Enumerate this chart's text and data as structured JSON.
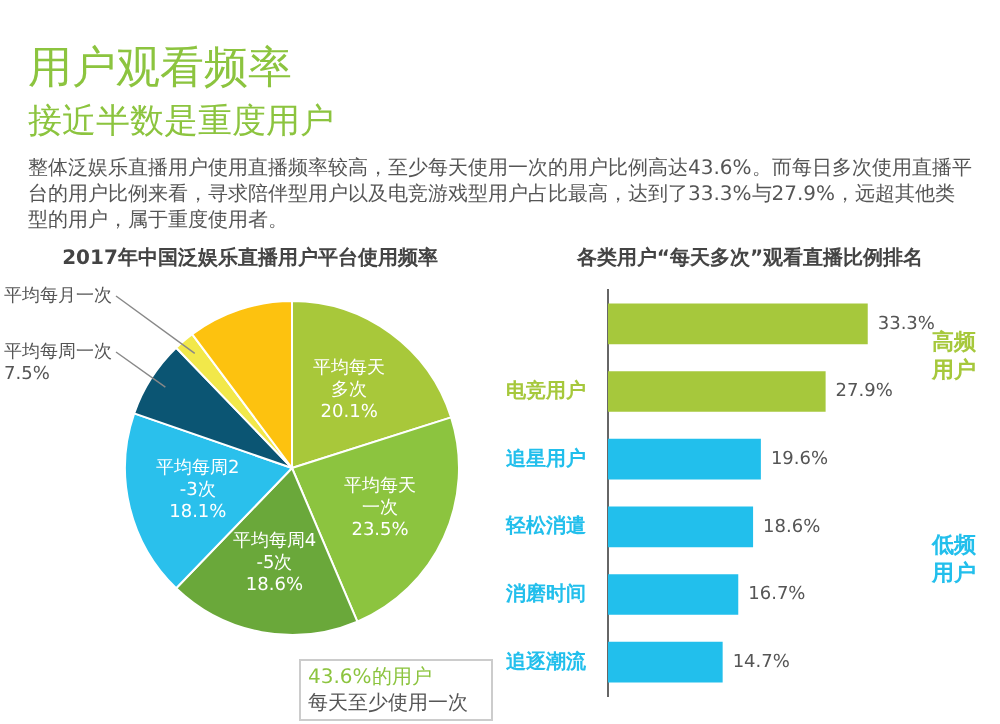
{
  "chart_data": [
    {
      "type": "pie",
      "title": "用户观看频率",
      "subtitle": "接近半数是重度用户",
      "annotations": [
        "整体泛娱乐直播用户使用直播频率较高，至少每天使用一次的用户比例高达43.6%。而每日多次使用直播平台的用户比例来看，寻求陪伴型用户以及电竞游戏型用户占比最高，达到了33.3%与27.9%，远超其他类型的用户，属于重度使用者。",
        "2017年中国泛娱乐直播用户平台使用频率",
        "43.6%的用户每天至少使用一次"
      ],
      "categories": [
        "平均每天多次",
        "平均每天一次",
        "平均每周4-5次",
        "平均每周2-3次",
        "平均每周一次",
        "平均每月一次",
        null
      ],
      "values": [
        20.1,
        23.5,
        18.6,
        18.1,
        7.5,
        2.0,
        10.2
      ],
      "value_labels": [
        "20.1%",
        "23.5%",
        "18.6%",
        "18.1%",
        "7.5%",
        null,
        null
      ],
      "colors": [
        "#a8c83a",
        "#8cc43f",
        "#6aa83a",
        "#2ac0ec",
        "#0b5573",
        "#f2e84a",
        "#fdc20f"
      ]
    },
    {
      "type": "bar",
      "orientation": "horizontal",
      "title": "各类用户“每天多次”观看直播比例排名",
      "annotations": [
        "高频用户",
        "低频用户"
      ],
      "categories": [
        null,
        "电竞用户",
        "追星用户",
        "轻松消遣",
        "消磨时间",
        "追逐潮流"
      ],
      "values": [
        33.3,
        27.9,
        19.6,
        18.6,
        16.7,
        14.7
      ],
      "value_labels": [
        "33.3%",
        "27.9%",
        "19.6%",
        "18.6%",
        "16.7%",
        "14.7%"
      ],
      "colors": [
        "#a6c83c",
        "#a6c83c",
        "#22bfec",
        "#22bfec",
        "#22bfec",
        "#22bfec"
      ]
    }
  ]
}
